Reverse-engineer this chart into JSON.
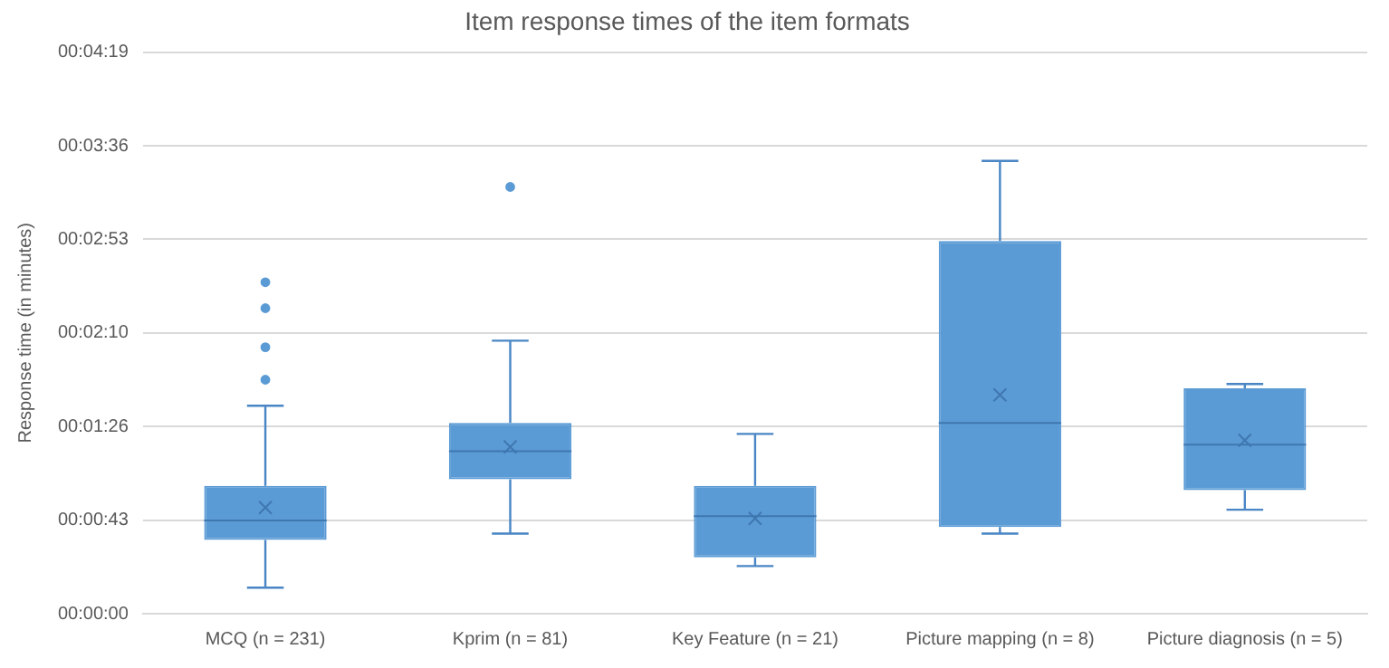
{
  "chart_data": {
    "type": "box",
    "title": "Item response times of the item formats",
    "ylabel": "Response time (in minutes)",
    "categories": [
      "MCQ (n = 231)",
      "Kprim (n = 81)",
      "Key Feature (n = 21)",
      "Picture mapping (n = 8)",
      "Picture diagnosis (n = 5)"
    ],
    "boxes": [
      {
        "low": 12,
        "q1": 34,
        "median": 43,
        "q3": 59,
        "high": 96,
        "mean": 49,
        "outliers": [
          108,
          123,
          141,
          153
        ]
      },
      {
        "low": 37,
        "q1": 62,
        "median": 75,
        "q3": 88,
        "high": 126,
        "mean": 77,
        "outliers": [
          197
        ]
      },
      {
        "low": 22,
        "q1": 26,
        "median": 45,
        "q3": 59,
        "high": 83,
        "mean": 44
      },
      {
        "low": 37,
        "q1": 40,
        "median": 88,
        "q3": 172,
        "high": 209,
        "mean": 101
      },
      {
        "low": 48,
        "q1": 57,
        "median": 78,
        "q3": 104,
        "high": 106,
        "mean": 80
      }
    ],
    "color": "#5b9bd5",
    "ylim": [
      0,
      259.2
    ],
    "yticks": [
      {
        "value": 0,
        "label": "00:00:00"
      },
      {
        "value": 43.2,
        "label": "00:00:43"
      },
      {
        "value": 86.4,
        "label": "00:01:26"
      },
      {
        "value": 129.6,
        "label": "00:02:10"
      },
      {
        "value": 172.8,
        "label": "00:02:53"
      },
      {
        "value": 216,
        "label": "00:03:36"
      },
      {
        "value": 259.2,
        "label": "00:04:19"
      }
    ],
    "grid": "y",
    "legend": false
  }
}
